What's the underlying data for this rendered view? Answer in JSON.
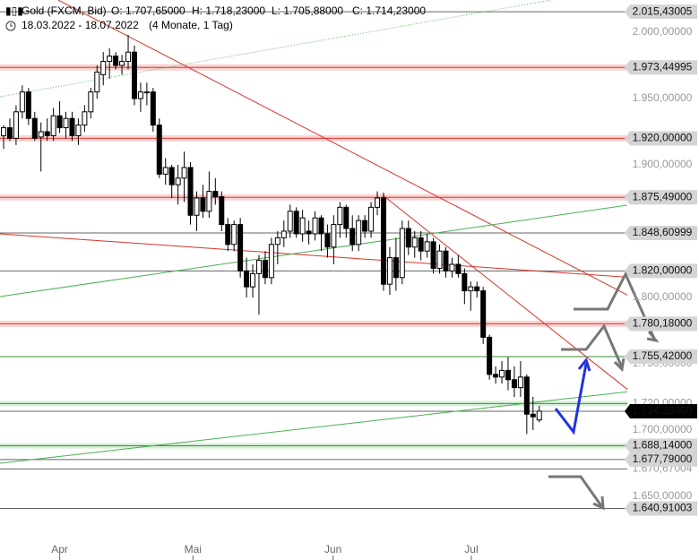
{
  "chart_data": {
    "type": "candlestick",
    "title": "Gold (FXCM, Bid)",
    "ohlc_text": {
      "open": "O: 1.707,65000",
      "high": "H: 1.718,23000",
      "low": "L: 1.705,88000",
      "close": "C: 1.714,23000"
    },
    "period": "18.03.2022 - 18.07.2022",
    "period_note": "(4 Monate, 1 Tag)",
    "up_color": "#ffffff",
    "down_color": "#000000",
    "candles": [
      [
        1922,
        1930,
        1912,
        1928
      ],
      [
        1928,
        1935,
        1918,
        1920
      ],
      [
        1920,
        1945,
        1915,
        1940
      ],
      [
        1940,
        1960,
        1935,
        1955
      ],
      [
        1955,
        1958,
        1930,
        1935
      ],
      [
        1935,
        1940,
        1918,
        1920
      ],
      [
        1921,
        1932,
        1895,
        1925
      ],
      [
        1925,
        1935,
        1918,
        1922
      ],
      [
        1922,
        1943,
        1918,
        1937
      ],
      [
        1937,
        1948,
        1924,
        1928
      ],
      [
        1928,
        1940,
        1920,
        1935
      ],
      [
        1935,
        1940,
        1918,
        1922
      ],
      [
        1922,
        1935,
        1915,
        1930
      ],
      [
        1930,
        1945,
        1925,
        1940
      ],
      [
        1940,
        1958,
        1935,
        1955
      ],
      [
        1955,
        1975,
        1950,
        1970
      ],
      [
        1968,
        1985,
        1960,
        1978
      ],
      [
        1978,
        1988,
        1965,
        1982
      ],
      [
        1982,
        1985,
        1972,
        1975
      ],
      [
        1975,
        1983,
        1968,
        1978
      ],
      [
        1978,
        1998,
        1972,
        1985
      ],
      [
        1985,
        1990,
        1945,
        1950
      ],
      [
        1950,
        1962,
        1940,
        1955
      ],
      [
        1955,
        1962,
        1945,
        1955
      ],
      [
        1955,
        1958,
        1925,
        1930
      ],
      [
        1930,
        1935,
        1890,
        1893
      ],
      [
        1893,
        1905,
        1885,
        1898
      ],
      [
        1898,
        1900,
        1875,
        1885
      ],
      [
        1885,
        1900,
        1870,
        1890
      ],
      [
        1890,
        1910,
        1872,
        1898
      ],
      [
        1898,
        1902,
        1855,
        1862
      ],
      [
        1862,
        1880,
        1850,
        1875
      ],
      [
        1875,
        1885,
        1860,
        1865
      ],
      [
        1865,
        1895,
        1860,
        1880
      ],
      [
        1880,
        1890,
        1870,
        1876
      ],
      [
        1876,
        1880,
        1850,
        1855
      ],
      [
        1855,
        1860,
        1835,
        1840
      ],
      [
        1840,
        1858,
        1835,
        1855
      ],
      [
        1855,
        1860,
        1815,
        1820
      ],
      [
        1820,
        1830,
        1800,
        1808
      ],
      [
        1808,
        1825,
        1800,
        1818
      ],
      [
        1818,
        1832,
        1787,
        1828
      ],
      [
        1828,
        1835,
        1810,
        1815
      ],
      [
        1815,
        1845,
        1810,
        1840
      ],
      [
        1840,
        1850,
        1825,
        1845
      ],
      [
        1845,
        1858,
        1838,
        1850
      ],
      [
        1850,
        1870,
        1845,
        1865
      ],
      [
        1865,
        1868,
        1845,
        1848
      ],
      [
        1848,
        1866,
        1842,
        1860
      ],
      [
        1850,
        1858,
        1840,
        1848
      ],
      [
        1848,
        1865,
        1843,
        1860
      ],
      [
        1860,
        1862,
        1835,
        1848
      ],
      [
        1848,
        1855,
        1830,
        1838
      ],
      [
        1838,
        1862,
        1825,
        1855
      ],
      [
        1855,
        1872,
        1845,
        1868
      ],
      [
        1868,
        1870,
        1845,
        1852
      ],
      [
        1852,
        1862,
        1835,
        1840
      ],
      [
        1840,
        1862,
        1835,
        1858
      ],
      [
        1858,
        1862,
        1845,
        1850
      ],
      [
        1850,
        1872,
        1845,
        1868
      ],
      [
        1868,
        1880,
        1862,
        1875
      ],
      [
        1875,
        1879,
        1805,
        1810
      ],
      [
        1810,
        1838,
        1802,
        1830
      ],
      [
        1830,
        1845,
        1805,
        1815
      ],
      [
        1815,
        1858,
        1810,
        1852
      ],
      [
        1852,
        1858,
        1832,
        1838
      ],
      [
        1838,
        1850,
        1830,
        1845
      ],
      [
        1845,
        1850,
        1828,
        1835
      ],
      [
        1835,
        1848,
        1830,
        1842
      ],
      [
        1842,
        1845,
        1818,
        1822
      ],
      [
        1822,
        1840,
        1818,
        1835
      ],
      [
        1835,
        1838,
        1815,
        1820
      ],
      [
        1820,
        1830,
        1815,
        1825
      ],
      [
        1825,
        1832,
        1815,
        1818
      ],
      [
        1818,
        1822,
        1795,
        1805
      ],
      [
        1805,
        1812,
        1790,
        1808
      ],
      [
        1808,
        1812,
        1800,
        1805
      ],
      [
        1805,
        1808,
        1765,
        1770
      ],
      [
        1770,
        1772,
        1738,
        1742
      ],
      [
        1742,
        1748,
        1735,
        1740
      ],
      [
        1740,
        1752,
        1735,
        1745
      ],
      [
        1745,
        1755,
        1730,
        1738
      ],
      [
        1738,
        1748,
        1725,
        1732
      ],
      [
        1732,
        1752,
        1725,
        1740
      ],
      [
        1740,
        1742,
        1697,
        1712
      ],
      [
        1712,
        1725,
        1700,
        1710
      ],
      [
        1707.65,
        1718.23,
        1705.88,
        1714.23
      ]
    ],
    "xlim": [
      -0.58,
      100.14
    ],
    "xticks": [
      {
        "value": 9,
        "label": "Apr"
      },
      {
        "value": 30.4,
        "label": "Mai"
      },
      {
        "value": 52.9,
        "label": "Jun"
      },
      {
        "value": 75.1,
        "label": "Jul"
      }
    ],
    "ylim": [
      1618.92,
      2024.32
    ],
    "yticks": [
      {
        "value": 2000,
        "label": "2.000,00000"
      },
      {
        "value": 1950,
        "label": "1.950,00000"
      },
      {
        "value": 1900,
        "label": "1.900,00000"
      },
      {
        "value": 1800,
        "label": "1.800,00000"
      },
      {
        "value": 1750,
        "label": "1.750,00000"
      },
      {
        "value": 1720,
        "label": "1.720,00000"
      },
      {
        "value": 1700,
        "label": "1.700,00000"
      },
      {
        "value": 1670.67004,
        "label": "1.670,67004"
      },
      {
        "value": 1650,
        "label": "1.650,00000"
      }
    ],
    "levels": [
      {
        "value": 2015.43005,
        "label": "2.015,43005",
        "style": "gray"
      },
      {
        "value": 1973.44995,
        "label": "1.973,44995",
        "style": "red"
      },
      {
        "value": 1920,
        "label": "1.920,00000",
        "style": "red"
      },
      {
        "value": 1875.49,
        "label": "1.875,49000",
        "style": "red"
      },
      {
        "value": 1848.60999,
        "label": "1.848,60999",
        "style": "gray"
      },
      {
        "value": 1820,
        "label": "1.820,00000",
        "style": "gray"
      },
      {
        "value": 1780.18,
        "label": "1.780,18000",
        "style": "red"
      },
      {
        "value": 1755.42,
        "label": "1.755,42000",
        "style": "green"
      },
      {
        "value": 1720,
        "style": "greenband"
      },
      {
        "value": 1714.23,
        "label": "1.714,23000",
        "style": "current"
      },
      {
        "value": 1688.14,
        "label": "1.688,14000",
        "style": "greenband"
      },
      {
        "value": 1677.79,
        "label": "1.677,79000",
        "style": "gray"
      },
      {
        "value": 1670.67004,
        "style": "gray"
      },
      {
        "value": 1640.91003,
        "label": "1.640,91003",
        "style": "gray"
      }
    ],
    "trendlines": [
      {
        "color": "#5cb85c",
        "dash": true,
        "x": [
          -0.58,
          87.9
        ],
        "y": [
          1951.4,
          2024.3
        ]
      },
      {
        "color": "#d9342b",
        "x": [
          8.78,
          107.3
        ],
        "y": [
          2024.3,
          1784.5
        ]
      },
      {
        "color": "#d9342b",
        "x": [
          -0.58,
          111.7
        ],
        "y": [
          1848.0,
          1811.5
        ]
      },
      {
        "color": "#d9342b",
        "x": [
          60.9,
          110.2
        ],
        "y": [
          1877.0,
          1693.2
        ]
      },
      {
        "color": "#4caf50",
        "x": [
          -0.58,
          100.1
        ],
        "y": [
          1800.7,
          1869.6
        ]
      },
      {
        "color": "#4caf50",
        "x": [
          -0.58,
          111.7
        ],
        "y": [
          1675.0,
          1735.1
        ]
      }
    ]
  }
}
